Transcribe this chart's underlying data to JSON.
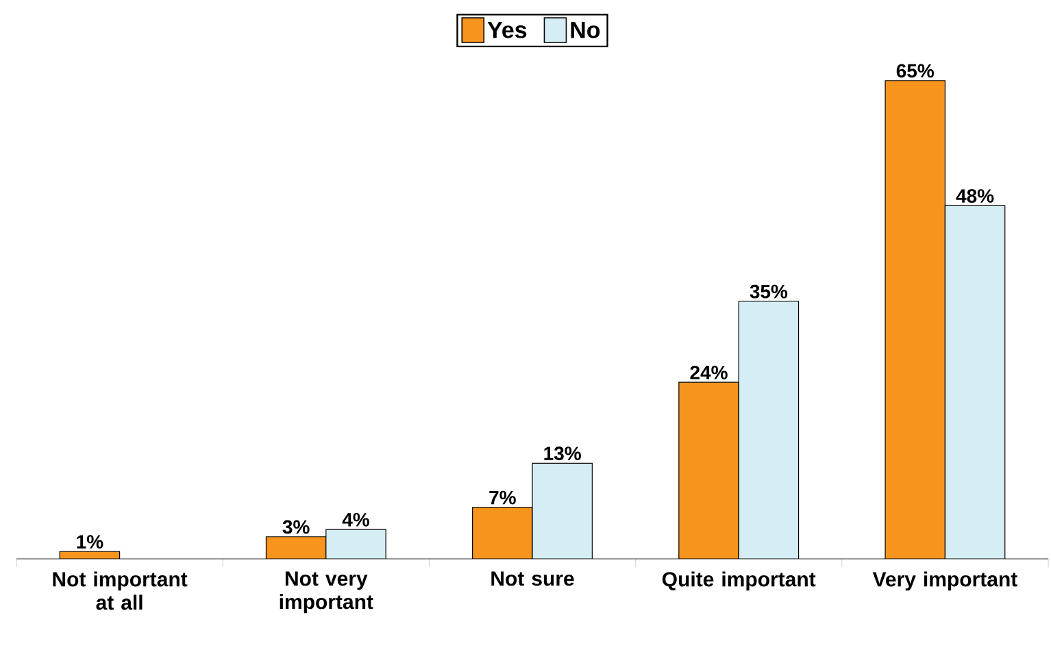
{
  "chart_data": {
    "type": "bar",
    "categories": [
      "Not important at all",
      "Not very important",
      "Not sure",
      "Quite important",
      "Very important"
    ],
    "series": [
      {
        "name": "Yes",
        "color": "#f7941d",
        "values": [
          1,
          3,
          7,
          24,
          65
        ],
        "value_labels": [
          "1%",
          "3%",
          "7%",
          "24%",
          "65%"
        ]
      },
      {
        "name": "No",
        "color": "#d5edf4",
        "values": [
          null,
          4,
          13,
          35,
          48
        ],
        "value_labels": [
          null,
          "4%",
          "13%",
          "35%",
          "48%"
        ]
      }
    ],
    "legend": "top"
  }
}
